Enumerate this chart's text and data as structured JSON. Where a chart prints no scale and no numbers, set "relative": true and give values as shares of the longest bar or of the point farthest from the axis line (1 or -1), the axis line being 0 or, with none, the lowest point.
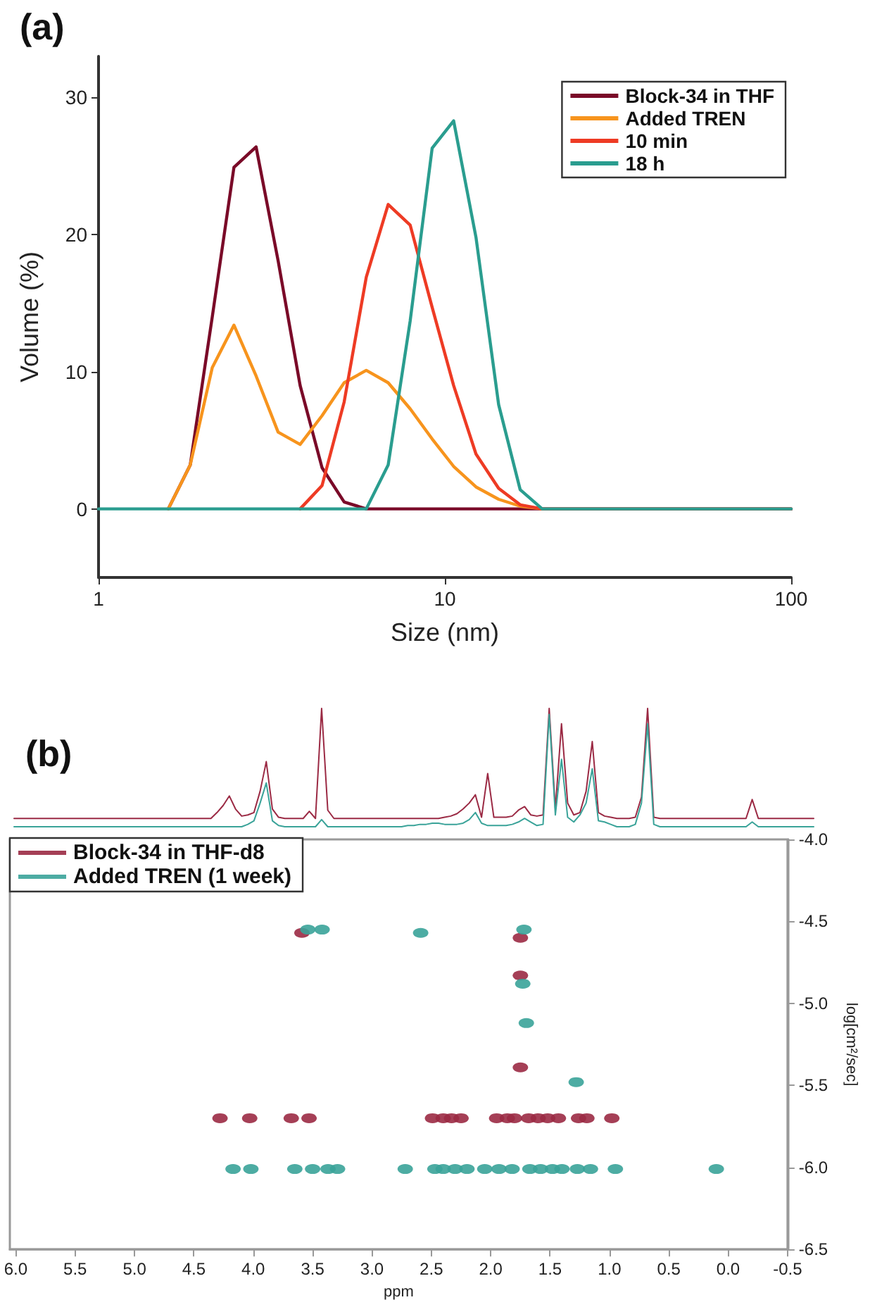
{
  "chart_data": [
    {
      "type": "line",
      "xlabel": "Size (nm)",
      "ylabel": "Volume (%)",
      "log": "x",
      "xlim": [
        1,
        100
      ],
      "xticks": [
        1,
        10,
        100
      ],
      "ylim": [
        -5,
        33
      ],
      "yticks": [
        0,
        10,
        20,
        30
      ],
      "legend": "top right",
      "marker": "none",
      "line_style": "solid",
      "annotations": [
        "(a)"
      ],
      "series": [
        {
          "name": "Block-34 in THF",
          "color": "#7a0a28",
          "x": [
            1.59,
            1.84,
            2.13,
            2.46,
            2.85,
            3.3,
            3.82,
            4.42,
            5.12,
            5.93,
            100
          ],
          "values": [
            0,
            3.2,
            14,
            24.9,
            26.4,
            18.1,
            9.0,
            3.0,
            0.5,
            0,
            0
          ]
        },
        {
          "name": "Added TREN",
          "color": "#f7941d",
          "x": [
            1.59,
            1.84,
            2.13,
            2.46,
            2.85,
            3.3,
            3.82,
            4.42,
            5.12,
            5.93,
            6.86,
            7.94,
            9.19,
            10.6,
            12.3,
            14.3,
            16.5,
            19.1
          ],
          "values": [
            0,
            3.2,
            10.3,
            13.4,
            9.7,
            5.6,
            4.7,
            6.8,
            9.2,
            10.1,
            9.2,
            7.3,
            5.1,
            3.1,
            1.6,
            0.7,
            0.2,
            0
          ]
        },
        {
          "name": "10 min",
          "color": "#ee3b24",
          "x": [
            3.82,
            4.42,
            5.12,
            5.93,
            6.86,
            7.94,
            9.19,
            10.6,
            12.3,
            14.3,
            16.5,
            19.1,
            100
          ],
          "values": [
            0,
            1.7,
            7.8,
            16.9,
            22.2,
            20.7,
            14.7,
            9.0,
            4.0,
            1.5,
            0.3,
            0,
            0
          ]
        },
        {
          "name": "18 h",
          "color": "#2a9d8f",
          "x": [
            1,
            5.93,
            6.86,
            7.94,
            9.19,
            10.6,
            12.3,
            14.3,
            16.5,
            19.1,
            100
          ],
          "values": [
            0,
            0,
            3.2,
            13.7,
            26.3,
            28.3,
            19.8,
            7.6,
            1.4,
            0,
            0
          ]
        }
      ]
    },
    {
      "type": "line",
      "relative": true,
      "tick_labels": false,
      "marker": "none",
      "line_style": "solid",
      "annotations": [
        "(b)"
      ],
      "categories": [
        null,
        null,
        null,
        null,
        null,
        null,
        null,
        null,
        null,
        null,
        null,
        null,
        null,
        null,
        null,
        null,
        null,
        null,
        null,
        null,
        null,
        null,
        null,
        null,
        null,
        null,
        null,
        null,
        null,
        null,
        null,
        null,
        null,
        null,
        null,
        null,
        null,
        null,
        null,
        null,
        null,
        null,
        null,
        null,
        null,
        null,
        null,
        null,
        null,
        null,
        null,
        null,
        null,
        null,
        null,
        null,
        null,
        null,
        null,
        null,
        null,
        null,
        null,
        null,
        null,
        null,
        null,
        null,
        null,
        null,
        null,
        null,
        null,
        null,
        null,
        null,
        null,
        null,
        null,
        null,
        null,
        null,
        null,
        null,
        null,
        null,
        null,
        null,
        null,
        null,
        null,
        null,
        null,
        null,
        null,
        null,
        null,
        null,
        null,
        null,
        null,
        null,
        null,
        null,
        null,
        null,
        null,
        null,
        null,
        null,
        null,
        null,
        null,
        null,
        null,
        null,
        null,
        null,
        null,
        null,
        null,
        null,
        null,
        null,
        null,
        null,
        null,
        null,
        null,
        null,
        null
      ],
      "series": [
        {
          "color": "#9b2a44",
          "values": [
            0.07,
            0.07,
            0.07,
            0.07,
            0.07,
            0.07,
            0.07,
            0.07,
            0.07,
            0.07,
            0.07,
            0.07,
            0.07,
            0.07,
            0.07,
            0.07,
            0.07,
            0.07,
            0.07,
            0.07,
            0.07,
            0.07,
            0.07,
            0.07,
            0.07,
            0.07,
            0.07,
            0.07,
            0.07,
            0.07,
            0.07,
            0.07,
            0.07,
            0.12,
            0.18,
            0.26,
            0.15,
            0.09,
            0.1,
            0.12,
            0.3,
            0.55,
            0.15,
            0.08,
            0.07,
            0.07,
            0.07,
            0.07,
            0.13,
            0.07,
            1.0,
            0.14,
            0.07,
            0.07,
            0.07,
            0.07,
            0.07,
            0.07,
            0.07,
            0.07,
            0.07,
            0.07,
            0.07,
            0.07,
            0.07,
            0.07,
            0.07,
            0.07,
            0.07,
            0.07,
            0.08,
            0.09,
            0.11,
            0.15,
            0.2,
            0.27,
            0.08,
            0.45,
            0.08,
            0.08,
            0.08,
            0.09,
            0.14,
            0.17,
            0.1,
            0.09,
            0.1,
            1.0,
            0.15,
            0.87,
            0.2,
            0.1,
            0.12,
            0.3,
            0.72,
            0.12,
            0.09,
            0.08,
            0.07,
            0.07,
            0.07,
            0.08,
            0.25,
            1.0,
            0.08,
            0.07,
            0.07,
            0.07,
            0.07,
            0.07,
            0.07,
            0.07,
            0.07,
            0.07,
            0.07,
            0.07,
            0.07,
            0.07,
            0.07,
            0.07,
            0.23,
            0.07,
            0.07,
            0.07,
            0.07,
            0.07,
            0.07,
            0.07,
            0.07,
            0.07,
            0.07
          ]
        },
        {
          "color": "#3aa399",
          "values": [
            0,
            0,
            0,
            0,
            0,
            0,
            0,
            0,
            0,
            0,
            0,
            0,
            0,
            0,
            0,
            0,
            0,
            0,
            0,
            0,
            0,
            0,
            0,
            0,
            0,
            0,
            0,
            0,
            0,
            0,
            0,
            0,
            0,
            0,
            0,
            0,
            0,
            0,
            0.02,
            0.05,
            0.2,
            0.37,
            0.05,
            0.01,
            0,
            0,
            0,
            0,
            0,
            0,
            0.06,
            0,
            0,
            0,
            0,
            0,
            0,
            0,
            0,
            0,
            0,
            0,
            0,
            0,
            0.01,
            0.01,
            0.02,
            0.02,
            0.03,
            0.03,
            0.02,
            0.02,
            0.02,
            0.03,
            0.06,
            0.12,
            0.03,
            0.01,
            0.01,
            0.01,
            0.01,
            0.02,
            0.04,
            0.07,
            0.04,
            0.01,
            0.02,
            0.95,
            0.1,
            0.57,
            0.08,
            0.04,
            0.1,
            0.2,
            0.49,
            0.05,
            0.04,
            0.02,
            0,
            0,
            0,
            0.02,
            0.2,
            0.87,
            0.02,
            0,
            0,
            0,
            0,
            0,
            0,
            0,
            0,
            0,
            0,
            0,
            0,
            0,
            0,
            0,
            0.04,
            0,
            0,
            0,
            0,
            0,
            0,
            0,
            0,
            0,
            0
          ]
        }
      ]
    },
    {
      "type": "scatter",
      "xlabel": "ppm",
      "ylabel": "log[cm²/sec]",
      "xlim": [
        6.05,
        -0.5
      ],
      "xticks": [
        {
          "value": 6,
          "label": "6.0"
        },
        5.5,
        {
          "value": 5,
          "label": "5.0"
        },
        4.5,
        {
          "value": 4,
          "label": "4.0"
        },
        3.5,
        {
          "value": 3,
          "label": "3.0"
        },
        2.5,
        {
          "value": 2,
          "label": "2.0"
        },
        1.5,
        {
          "value": 1,
          "label": "1.0"
        },
        0.5,
        {
          "value": 0,
          "label": "0.0"
        },
        -0.5
      ],
      "ylim": [
        -6.5,
        -4.0
      ],
      "yticks": [
        {
          "value": -6.5,
          "label": "-6.5"
        },
        {
          "value": -6,
          "label": "-6.0"
        },
        {
          "value": -5.5,
          "label": "-5.5"
        },
        {
          "value": -5,
          "label": "-5.0"
        },
        {
          "value": -4.5,
          "label": "-4.5"
        },
        {
          "value": -4,
          "label": "-4.0"
        }
      ],
      "legend": "top left",
      "marker": "circle",
      "series": [
        {
          "name": "Block-34 in THF-d8",
          "color": "#9b2a44",
          "x": [
            4.28,
            4.03,
            3.68,
            3.53,
            2.49,
            2.4,
            2.33,
            2.25,
            1.95,
            1.86,
            1.8,
            1.68,
            1.6,
            1.52,
            1.43,
            1.26,
            1.19,
            0.98,
            3.59,
            1.75,
            1.75,
            1.75
          ],
          "values": [
            -5.7,
            -5.7,
            -5.7,
            -5.7,
            -5.7,
            -5.7,
            -5.7,
            -5.7,
            -5.7,
            -5.7,
            -5.7,
            -5.7,
            -5.7,
            -5.7,
            -5.7,
            -5.7,
            -5.7,
            -5.7,
            -4.57,
            -4.6,
            -4.83,
            -5.39
          ]
        },
        {
          "name": "Added TREN (1 week)",
          "color": "#3aa399",
          "x": [
            4.17,
            4.02,
            3.65,
            3.5,
            3.37,
            3.29,
            2.72,
            2.47,
            2.4,
            2.3,
            2.2,
            2.05,
            1.93,
            1.82,
            1.67,
            1.58,
            1.48,
            1.4,
            1.27,
            1.16,
            0.95,
            0.1,
            3.54,
            3.42,
            2.59,
            1.72,
            1.73,
            1.7,
            1.28
          ],
          "values": [
            -6.01,
            -6.01,
            -6.01,
            -6.01,
            -6.01,
            -6.01,
            -6.01,
            -6.01,
            -6.01,
            -6.01,
            -6.01,
            -6.01,
            -6.01,
            -6.01,
            -6.01,
            -6.01,
            -6.01,
            -6.01,
            -6.01,
            -6.01,
            -6.01,
            -6.01,
            -4.55,
            -4.55,
            -4.57,
            -4.55,
            -4.88,
            -5.12,
            -5.48
          ]
        }
      ]
    }
  ]
}
